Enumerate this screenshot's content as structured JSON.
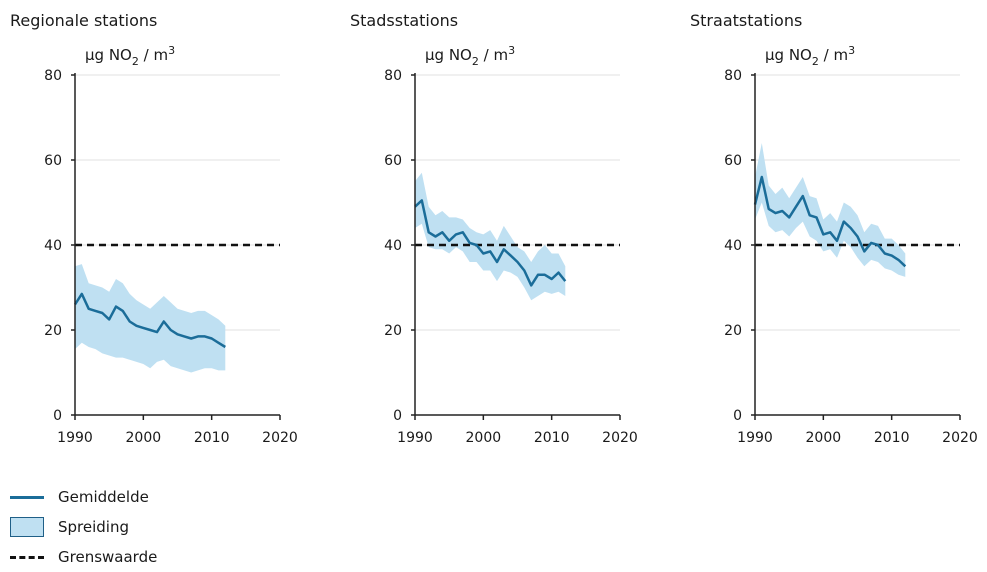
{
  "colors": {
    "mean": "#1b6d99",
    "spread": "#bfe0f2",
    "limit": "#111111",
    "axis": "#222222",
    "grid": "#e2e2e2"
  },
  "legend": {
    "mean": "Gemiddelde",
    "spread": "Spreiding",
    "limit": "Grenswaarde"
  },
  "chart_data": [
    {
      "type": "area",
      "title": "Regionale stations",
      "ylabel": "µg NO",
      "ylabel_sub": "2",
      "ylabel_suffix": " / m",
      "ylabel_sup": "3",
      "xlim": [
        1990,
        2020
      ],
      "ylim": [
        0,
        80
      ],
      "xticks": [
        1990,
        2000,
        2010,
        2020
      ],
      "yticks": [
        0,
        20,
        40,
        60,
        80
      ],
      "grid": true,
      "limit_value": 40,
      "x": [
        1990,
        1991,
        1992,
        1993,
        1994,
        1995,
        1996,
        1997,
        1998,
        1999,
        2000,
        2001,
        2002,
        2003,
        2004,
        2005,
        2006,
        2007,
        2008,
        2009,
        2010,
        2011,
        2012
      ],
      "series": [
        {
          "name": "Gemiddelde",
          "values": [
            26,
            28.5,
            25,
            24.5,
            24,
            22.5,
            25.5,
            24.5,
            22,
            21,
            20.5,
            20,
            19.5,
            22,
            20,
            19,
            18.5,
            18,
            18.5,
            18.5,
            18,
            17,
            16
          ]
        },
        {
          "name": "Spreiding",
          "low": [
            15.5,
            17,
            16,
            15.5,
            14.5,
            14,
            13.5,
            13.5,
            13,
            12.5,
            12,
            11,
            12.5,
            13,
            11.5,
            11,
            10.5,
            10,
            10.5,
            11,
            11,
            10.5,
            10.5
          ],
          "high": [
            35,
            35.5,
            31,
            30.5,
            30,
            29,
            32,
            31,
            28.5,
            27,
            26,
            25,
            26.5,
            28,
            26.5,
            25,
            24.5,
            24,
            24.5,
            24.5,
            23.5,
            22.5,
            21
          ]
        }
      ]
    },
    {
      "type": "area",
      "title": "Stadsstations",
      "ylabel": "µg NO",
      "ylabel_sub": "2",
      "ylabel_suffix": " / m",
      "ylabel_sup": "3",
      "xlim": [
        1990,
        2020
      ],
      "ylim": [
        0,
        80
      ],
      "xticks": [
        1990,
        2000,
        2010,
        2020
      ],
      "yticks": [
        0,
        20,
        40,
        60,
        80
      ],
      "grid": true,
      "limit_value": 40,
      "x": [
        1990,
        1991,
        1992,
        1993,
        1994,
        1995,
        1996,
        1997,
        1998,
        1999,
        2000,
        2001,
        2002,
        2003,
        2004,
        2005,
        2006,
        2007,
        2008,
        2009,
        2010,
        2011,
        2012
      ],
      "series": [
        {
          "name": "Gemiddelde",
          "values": [
            49,
            50.5,
            43,
            42,
            43,
            41,
            42.5,
            43,
            40.5,
            40,
            38,
            38.5,
            36,
            39,
            37.5,
            36,
            34,
            30.5,
            33,
            33,
            32,
            33.5,
            31.5
          ]
        },
        {
          "name": "Spreiding",
          "low": [
            44,
            45,
            39.5,
            39,
            39,
            38,
            39.5,
            38.5,
            36,
            36,
            34,
            34,
            31.5,
            34,
            33.5,
            32.5,
            30,
            27,
            28,
            29,
            28.5,
            29,
            28
          ],
          "high": [
            55,
            57,
            49,
            47,
            48,
            46.5,
            46.5,
            46,
            44,
            43,
            42.5,
            43.5,
            41,
            44.5,
            42,
            39.5,
            38.5,
            36,
            38.5,
            40,
            38,
            38,
            35
          ]
        }
      ]
    },
    {
      "type": "area",
      "title": "Straatstations",
      "ylabel": "µg NO",
      "ylabel_sub": "2",
      "ylabel_suffix": " / m",
      "ylabel_sup": "3",
      "xlim": [
        1990,
        2020
      ],
      "ylim": [
        0,
        80
      ],
      "xticks": [
        1990,
        2000,
        2010,
        2020
      ],
      "yticks": [
        0,
        20,
        40,
        60,
        80
      ],
      "grid": true,
      "limit_value": 40,
      "x": [
        1990,
        1991,
        1992,
        1993,
        1994,
        1995,
        1996,
        1997,
        1998,
        1999,
        2000,
        2001,
        2002,
        2003,
        2004,
        2005,
        2006,
        2007,
        2008,
        2009,
        2010,
        2011,
        2012
      ],
      "series": [
        {
          "name": "Gemiddelde",
          "values": [
            49.5,
            56,
            48.5,
            47.5,
            48,
            46.5,
            49,
            51.5,
            47,
            46.5,
            42.5,
            43,
            41,
            45.5,
            44,
            42,
            38.5,
            40.5,
            40,
            38,
            37.5,
            36.5,
            35
          ]
        },
        {
          "name": "Spreiding",
          "low": [
            46,
            50,
            44.5,
            43,
            43.5,
            42,
            44,
            45.5,
            42,
            41,
            38.5,
            39,
            37,
            41,
            39.5,
            37,
            35,
            36.5,
            36,
            34.5,
            34,
            33,
            32.5
          ],
          "high": [
            56,
            64,
            54,
            52,
            53.5,
            51,
            53.5,
            56,
            51.5,
            51,
            46,
            47.5,
            45.5,
            50,
            49,
            47,
            43,
            45,
            44.5,
            41.5,
            41.5,
            40,
            38
          ]
        }
      ]
    }
  ]
}
